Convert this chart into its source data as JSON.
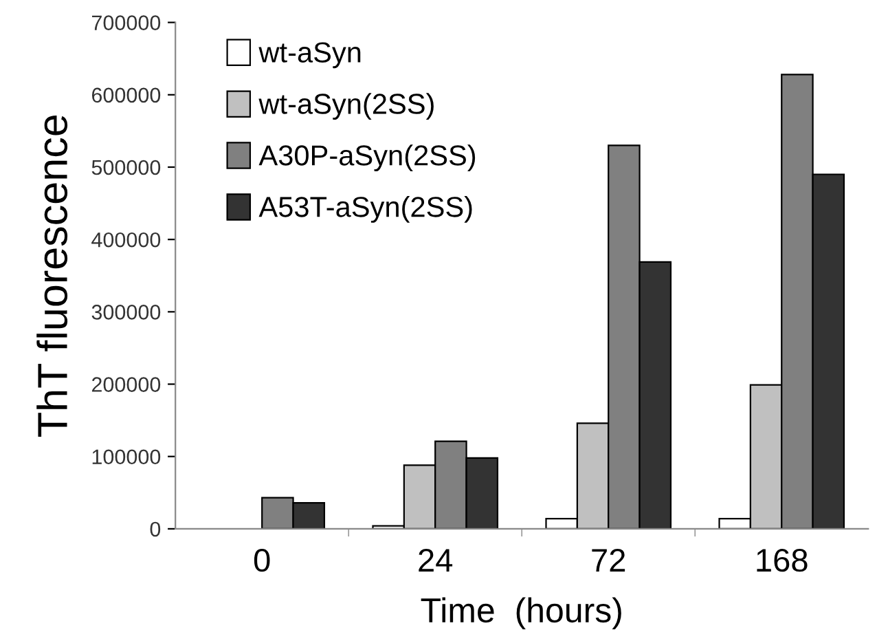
{
  "chart_data": {
    "type": "bar",
    "xlabel": "Time  (hours)",
    "ylabel": "ThT fluorescence",
    "categories": [
      "0",
      "24",
      "72",
      "168"
    ],
    "series": [
      {
        "name": "wt-aSyn",
        "color": "#ffffff",
        "values": [
          null,
          4000,
          14000,
          14000
        ]
      },
      {
        "name": "wt-aSyn(2SS)",
        "color": "#c0c0c0",
        "values": [
          null,
          88000,
          146000,
          199000
        ]
      },
      {
        "name": "A30P-aSyn(2SS)",
        "color": "#808080",
        "values": [
          43000,
          121000,
          530000,
          628000
        ]
      },
      {
        "name": "A53T-aSyn(2SS)",
        "color": "#333333",
        "values": [
          36000,
          98000,
          369000,
          490000
        ]
      }
    ],
    "ylim": [
      0,
      700000
    ],
    "yticks": [
      0,
      100000,
      200000,
      300000,
      400000,
      500000,
      600000,
      700000
    ],
    "grid": false,
    "legend": "top left"
  }
}
